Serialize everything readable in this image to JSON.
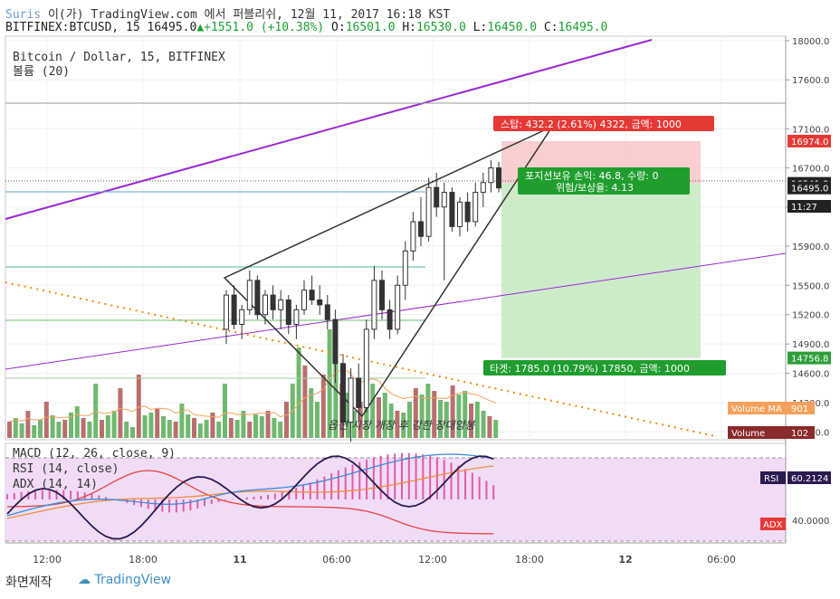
{
  "header": {
    "user": "Suris",
    "line1_rest": " 이(가) TradingView.com 에서 퍼블리쉬, 12월 11, 2017 16:18 KST",
    "symbol_prefix": "BITFINEX:BTCUSD, 15 16495.0",
    "change": "+1551.0 (+10.38%)",
    "o_label": " O:",
    "o_val": "16501.0",
    "h_label": " H:",
    "h_val": "16530.0",
    "l_label": " L:",
    "l_val": "16450.0",
    "c_label": " C:",
    "c_val": "16495.0"
  },
  "footer": {
    "left": "화면제작",
    "logo": "TradingView"
  },
  "colors": {
    "up": "#2c9c3c",
    "down": "#8a2a2a",
    "purple": "#9b28d6",
    "orange": "#f08c00",
    "stop_zone": "#f8c8c8",
    "target_zone": "#c8e8c4",
    "panel_bg": "#f1dcf6"
  },
  "chart_data": {
    "type": "candlestick",
    "title": "Bitcoin / Dollar, 15, BITFINEX",
    "volume_label": "볼륨 (20)",
    "y_ticks": [
      18000,
      17600,
      17100,
      16700,
      16300,
      15900,
      15500,
      15200,
      14900,
      14600,
      14300,
      14000
    ],
    "y_tick_labels": [
      "18000.0",
      "17600.0",
      "17100.0",
      "16700.0",
      "16300.0",
      "15900.0",
      "15500.0",
      "15200.0",
      "14900.0",
      "14600.0",
      "14300.0",
      "14000.0"
    ],
    "x_ticks": [
      "12:00",
      "18:00",
      "11",
      "06:00",
      "12:00",
      "18:00",
      "12",
      "06:00"
    ],
    "price_tags": [
      {
        "text": "16974.0",
        "value": 16974,
        "color": "#e53935"
      },
      {
        "text": "16541.8",
        "value": 16541.8,
        "color": "#222222"
      },
      {
        "text": "16495.0",
        "value": 16495,
        "color": "#222222"
      },
      {
        "text": "11:27",
        "value": 16400,
        "color": "#222222"
      },
      {
        "text": "14756.8",
        "value": 14756.8,
        "color": "#2e9e3a"
      }
    ],
    "volume_tags": [
      {
        "text": "Volume MA",
        "color": "#f5a05a",
        "value": "901"
      },
      {
        "text": "Volume",
        "color": "#8a2a2a",
        "value": "102"
      }
    ],
    "position": {
      "stop": "스탑: 432.2 (2.61%) 4322, 금액: 1000",
      "middle_1": "포지션보유 손익: 46.8, 수량: 0",
      "middle_2": "위험/보상율: 4.13",
      "target": "타겟: 1785.0 (10.79%) 17850, 금액: 1000",
      "entry": 16541.8,
      "stop_price": 16974,
      "target_price": 14756.8
    },
    "annotation": "옵션 시장 개장 후 강한 장대양봉",
    "indicators": {
      "macd": "MACD (12, 26, close, 9)",
      "rsi": "RSI (14, close)",
      "adx": "ADX (14, 14)",
      "rsi_tag": "60.2124",
      "rsi_tag_label": "RSI",
      "adx_tag_label": "ADX",
      "y_tick": "40.0000"
    },
    "candles": [
      [
        15050,
        15450,
        14900,
        15400
      ],
      [
        15400,
        15500,
        15050,
        15100
      ],
      [
        15100,
        15300,
        14950,
        15250
      ],
      [
        15250,
        15650,
        15200,
        15550
      ],
      [
        15550,
        15600,
        15150,
        15200
      ],
      [
        15200,
        15450,
        15100,
        15400
      ],
      [
        15400,
        15500,
        15150,
        15250
      ],
      [
        15250,
        15450,
        15050,
        15350
      ],
      [
        15350,
        15400,
        15000,
        15100
      ],
      [
        15100,
        15300,
        14950,
        15250
      ],
      [
        15250,
        15550,
        15200,
        15450
      ],
      [
        15450,
        15600,
        15300,
        15350
      ],
      [
        15350,
        15500,
        15200,
        15300
      ],
      [
        15300,
        15400,
        15050,
        15150
      ],
      [
        15150,
        15250,
        14500,
        14700
      ],
      [
        14700,
        14800,
        13950,
        14100
      ],
      [
        14100,
        14650,
        13900,
        14550
      ],
      [
        14550,
        14700,
        14100,
        14250
      ],
      [
        14250,
        15150,
        14200,
        15050
      ],
      [
        15050,
        15700,
        14950,
        15550
      ],
      [
        15550,
        15650,
        15150,
        15250
      ],
      [
        15250,
        15350,
        14950,
        15050
      ],
      [
        15050,
        15600,
        15000,
        15500
      ],
      [
        15500,
        15950,
        15350,
        15850
      ],
      [
        15850,
        16250,
        15750,
        16150
      ],
      [
        16150,
        16400,
        15900,
        16000
      ],
      [
        16000,
        16600,
        15950,
        16500
      ],
      [
        16500,
        16650,
        16200,
        16300
      ],
      [
        16300,
        16550,
        15550,
        16450
      ],
      [
        16450,
        16500,
        16050,
        16100
      ],
      [
        16100,
        16400,
        16000,
        16350
      ],
      [
        16350,
        16450,
        16050,
        16150
      ],
      [
        16150,
        16550,
        16100,
        16450
      ],
      [
        16450,
        16650,
        16300,
        16550
      ],
      [
        16550,
        16780,
        16450,
        16700
      ],
      [
        16700,
        16760,
        16450,
        16495
      ]
    ]
  }
}
